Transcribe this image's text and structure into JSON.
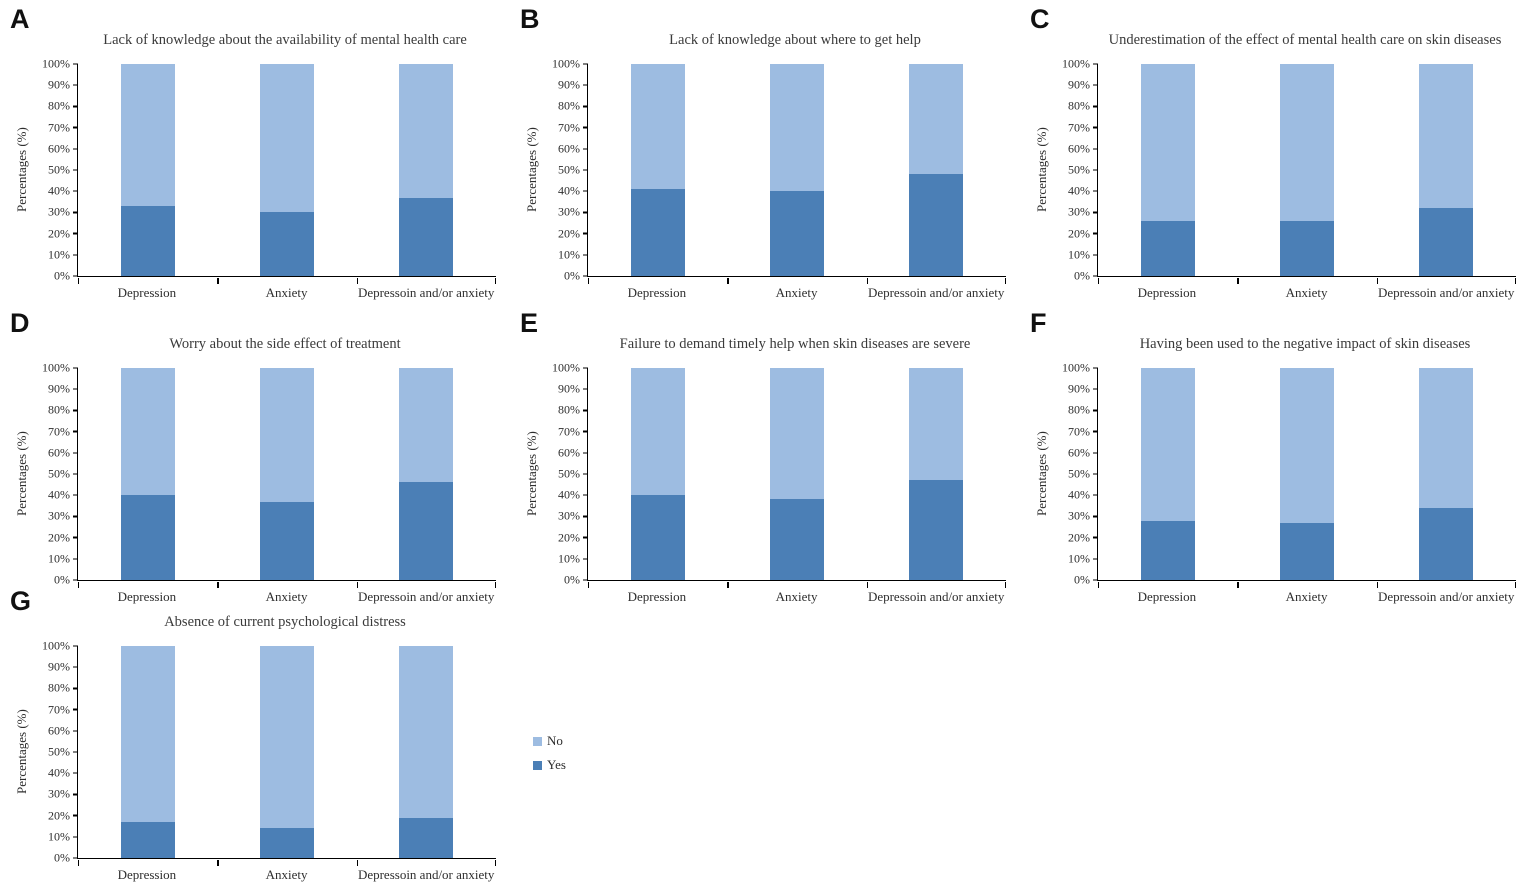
{
  "figure_background": "#ffffff",
  "colors": {
    "no": "#9DBCE1",
    "yes": "#4B7FB6",
    "axis": "#000000",
    "text": "#3a3a3a"
  },
  "axis": {
    "y_label": "Percentages (%)",
    "y_ticks": [
      "100%",
      "90%",
      "80%",
      "70%",
      "60%",
      "50%",
      "40%",
      "30%",
      "20%",
      "10%",
      "0%"
    ]
  },
  "legend": {
    "items": [
      {
        "label": "No",
        "color": "#9DBCE1"
      },
      {
        "label": "Yes",
        "color": "#4B7FB6"
      }
    ]
  },
  "chart_data": [
    {
      "panel": "A",
      "type": "bar",
      "stacked": true,
      "units": "percent",
      "title": "Lack of knowledge about the availability of mental health care",
      "categories": [
        "Depression",
        "Anxiety",
        "Depressoin and/or anxiety"
      ],
      "series": [
        {
          "name": "No",
          "color": "#9DBCE1",
          "values": [
            67,
            70,
            63
          ]
        },
        {
          "name": "Yes",
          "color": "#4B7FB6",
          "values": [
            33,
            30,
            37
          ]
        }
      ],
      "xlabel": "",
      "ylabel": "Percentages (%)",
      "ylim": [
        0,
        100
      ],
      "ytick_step": 10,
      "grid": false
    },
    {
      "panel": "B",
      "type": "bar",
      "stacked": true,
      "units": "percent",
      "title": "Lack of knowledge about where to get help",
      "categories": [
        "Depression",
        "Anxiety",
        "Depressoin and/or anxiety"
      ],
      "series": [
        {
          "name": "No",
          "color": "#9DBCE1",
          "values": [
            59,
            60,
            52
          ]
        },
        {
          "name": "Yes",
          "color": "#4B7FB6",
          "values": [
            41,
            40,
            48
          ]
        }
      ],
      "xlabel": "",
      "ylabel": "Percentages (%)",
      "ylim": [
        0,
        100
      ],
      "ytick_step": 10,
      "grid": false
    },
    {
      "panel": "C",
      "type": "bar",
      "stacked": true,
      "units": "percent",
      "title": "Underestimation of the effect of mental health care on skin diseases",
      "categories": [
        "Depression",
        "Anxiety",
        "Depressoin and/or anxiety"
      ],
      "series": [
        {
          "name": "No",
          "color": "#9DBCE1",
          "values": [
            74,
            74,
            68
          ]
        },
        {
          "name": "Yes",
          "color": "#4B7FB6",
          "values": [
            26,
            26,
            32
          ]
        }
      ],
      "xlabel": "",
      "ylabel": "Percentages (%)",
      "ylim": [
        0,
        100
      ],
      "ytick_step": 10,
      "grid": false
    },
    {
      "panel": "D",
      "type": "bar",
      "stacked": true,
      "units": "percent",
      "title": "Worry about the side effect of treatment",
      "categories": [
        "Depression",
        "Anxiety",
        "Depressoin and/or anxiety"
      ],
      "series": [
        {
          "name": "No",
          "color": "#9DBCE1",
          "values": [
            60,
            63,
            54
          ]
        },
        {
          "name": "Yes",
          "color": "#4B7FB6",
          "values": [
            40,
            37,
            46
          ]
        }
      ],
      "xlabel": "",
      "ylabel": "Percentages (%)",
      "ylim": [
        0,
        100
      ],
      "ytick_step": 10,
      "grid": false
    },
    {
      "panel": "E",
      "type": "bar",
      "stacked": true,
      "units": "percent",
      "title": "Failure to demand timely help when skin diseases are severe",
      "categories": [
        "Depression",
        "Anxiety",
        "Depressoin and/or anxiety"
      ],
      "series": [
        {
          "name": "No",
          "color": "#9DBCE1",
          "values": [
            60,
            62,
            53
          ]
        },
        {
          "name": "Yes",
          "color": "#4B7FB6",
          "values": [
            40,
            38,
            47
          ]
        }
      ],
      "xlabel": "",
      "ylabel": "Percentages (%)",
      "ylim": [
        0,
        100
      ],
      "ytick_step": 10,
      "grid": false
    },
    {
      "panel": "F",
      "type": "bar",
      "stacked": true,
      "units": "percent",
      "title": "Having been used to the negative impact of skin diseases",
      "categories": [
        "Depression",
        "Anxiety",
        "Depressoin and/or anxiety"
      ],
      "series": [
        {
          "name": "No",
          "color": "#9DBCE1",
          "values": [
            72,
            73,
            66
          ]
        },
        {
          "name": "Yes",
          "color": "#4B7FB6",
          "values": [
            28,
            27,
            34
          ]
        }
      ],
      "xlabel": "",
      "ylabel": "Percentages (%)",
      "ylim": [
        0,
        100
      ],
      "ytick_step": 10,
      "grid": false
    },
    {
      "panel": "G",
      "type": "bar",
      "stacked": true,
      "units": "percent",
      "title": "Absence of current psychological distress",
      "categories": [
        "Depression",
        "Anxiety",
        "Depressoin and/or anxiety"
      ],
      "series": [
        {
          "name": "No",
          "color": "#9DBCE1",
          "values": [
            83,
            86,
            81
          ]
        },
        {
          "name": "Yes",
          "color": "#4B7FB6",
          "values": [
            17,
            14,
            19
          ]
        }
      ],
      "xlabel": "",
      "ylabel": "Percentages (%)",
      "ylim": [
        0,
        100
      ],
      "ytick_step": 10,
      "grid": false
    }
  ]
}
